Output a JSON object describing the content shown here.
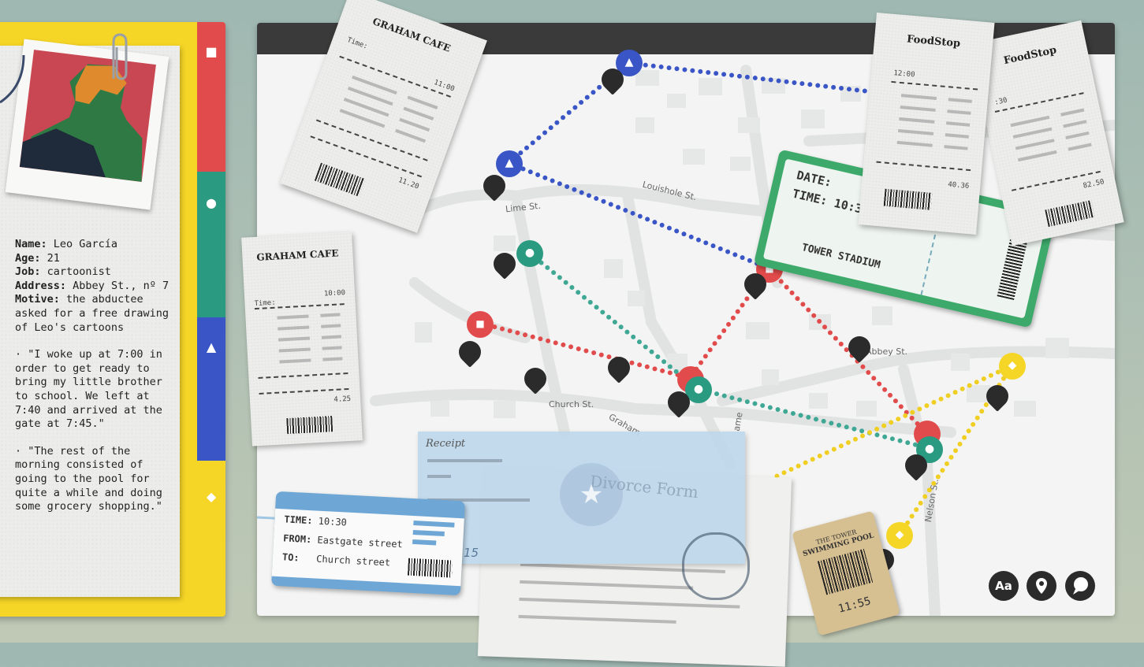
{
  "profile": {
    "name_label": "Name:",
    "name": "Leo García",
    "age_label": "Age:",
    "age": "21",
    "job_label": "Job:",
    "job": "cartoonist",
    "address_label": "Address:",
    "address": "Abbey St., nº 7",
    "motive_label": "Motive:",
    "motive": "the abductee asked for a free drawing of Leo's cartoons",
    "statements": [
      "· \"I woke up at 7:00 in order to get ready to bring my little brother to school. We left at 7:40 and arrived at the gate at 7:45.\"",
      "· \"The rest of the morning consisted of going to the pool for quite a while and doing some grocery shopping.\""
    ]
  },
  "tabs": [
    {
      "color": "#e24b4b",
      "glyph": "■"
    },
    {
      "color": "#2a9a80",
      "glyph": "●"
    },
    {
      "color": "#3a56c6",
      "glyph": "▲"
    },
    {
      "color": "#f5d526",
      "glyph": "◆"
    }
  ],
  "streets": [
    "Louishole St.",
    "Lime St.",
    "Church St.",
    "Abbey St.",
    "Nelson St.",
    "Graham",
    "ame"
  ],
  "receipts": {
    "graham_top": {
      "name": "GRAHAM CAFE",
      "time_label": "Time:",
      "time": "11:00",
      "total": "11.20"
    },
    "graham_left": {
      "name": "GRAHAM CAFE",
      "time_label": "Time:",
      "time": "10:00",
      "total": "4.25"
    },
    "foodstop_a": {
      "name": "FoodStop",
      "time": "12:00",
      "total": "40.36"
    },
    "foodstop_b": {
      "name": "FoodStop",
      "time": ":30",
      "total": "82.50"
    }
  },
  "stadium_ticket": {
    "date_label": "DATE:",
    "time_label": "TIME:",
    "time": "10:35",
    "venue": "TOWER STADIUM"
  },
  "bus_ticket": {
    "time_label": "TIME:",
    "time": "10:30",
    "from_label": "FROM:",
    "from": "Eastgate street",
    "to_label": "TO:",
    "to": "Church street"
  },
  "documents": {
    "receipt_label": "Receipt",
    "divorce_label": "Divorce Form",
    "receipt_num": "15"
  },
  "pool_ticket": {
    "title_line1": "THE TOWER",
    "title_line2": "SWIMMING POOL",
    "time": "11:55"
  },
  "tools": [
    {
      "label": "Aa",
      "icon": "text-icon"
    },
    {
      "label": "",
      "icon": "pin-icon"
    },
    {
      "label": "",
      "icon": "comment-icon"
    }
  ],
  "colors": {
    "red": "#e24b4b",
    "teal": "#2a9a80",
    "blue": "#3a56c6",
    "yellow": "#f5d526"
  }
}
